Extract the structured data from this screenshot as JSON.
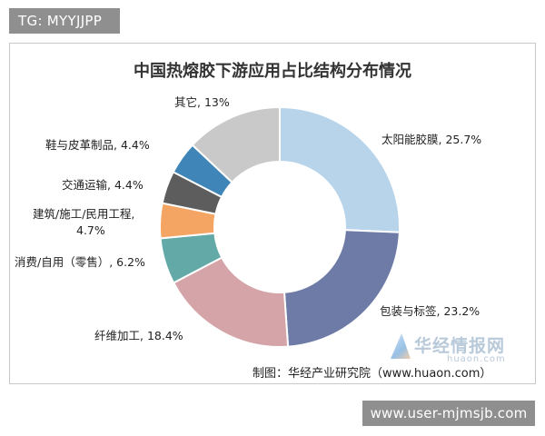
{
  "tag_text": "TG: MYYJJPP",
  "source_text": "制图：华经产业研究院（www.huaon.com）",
  "watermark": {
    "brand": "华经情报网",
    "domain": "huaon.com"
  },
  "url_badge": "www.user-mjmsjb.com",
  "chart_data": {
    "type": "pie",
    "donut": true,
    "title": "中国热熔胶下游应用占比结构分布情况",
    "slices": [
      {
        "label": "太阳能胶膜, 25.7%",
        "name": "太阳能胶膜",
        "value": 25.7,
        "color": "#b8d4ea"
      },
      {
        "label": "包装与标签, 23.2%",
        "name": "包装与标签",
        "value": 23.2,
        "color": "#6d7ba6"
      },
      {
        "label": "纤维加工, 18.4%",
        "name": "纤维加工",
        "value": 18.4,
        "color": "#d4a4a8"
      },
      {
        "label": "消费/自用（零售）, 6.2%",
        "name": "消费/自用（零售）",
        "value": 6.2,
        "color": "#62a9a7"
      },
      {
        "label": "建筑/施工/民用工程, 4.7%",
        "name": "建筑/施工/民用工程",
        "value": 4.7,
        "color": "#f4a563"
      },
      {
        "label": "交通运输, 4.4%",
        "name": "交通运输",
        "value": 4.4,
        "color": "#5d5d5d"
      },
      {
        "label": "鞋与皮革制品, 4.4%",
        "name": "鞋与皮革制品",
        "value": 4.4,
        "color": "#3f85b8"
      },
      {
        "label": "其它, 13%",
        "name": "其它",
        "value": 13,
        "color": "#c9c9c9"
      }
    ]
  }
}
